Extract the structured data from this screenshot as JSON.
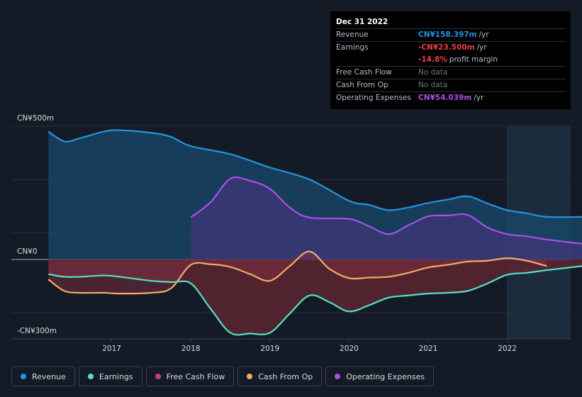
{
  "chart_data": {
    "type": "area",
    "y_axis_labels": {
      "top": "CN¥500m",
      "zero": "CN¥0",
      "bottom": "-CN¥300m"
    },
    "ylim": [
      -300,
      500
    ],
    "xlim": [
      2016.15,
      2023.0
    ],
    "x_ticks": [
      {
        "value": 2017,
        "label": "2017"
      },
      {
        "value": 2018,
        "label": "2018"
      },
      {
        "value": 2019,
        "label": "2019"
      },
      {
        "value": 2020,
        "label": "2020"
      },
      {
        "value": 2021,
        "label": "2021"
      },
      {
        "value": 2022,
        "label": "2022"
      }
    ],
    "highlight_start": 2022.0,
    "series": [
      {
        "name": "Revenue",
        "color": "#2394df",
        "fill": true,
        "x": [
          2016.2,
          2016.4,
          2016.6,
          2016.9,
          2017.1,
          2017.5,
          2017.75,
          2018.0,
          2018.5,
          2019.0,
          2019.5,
          2020.0,
          2020.25,
          2020.5,
          2020.75,
          2021.0,
          2021.25,
          2021.5,
          2021.75,
          2022.0,
          2022.25,
          2022.5,
          2023.0
        ],
        "values": [
          480,
          443,
          455,
          480,
          485,
          475,
          460,
          425,
          395,
          345,
          300,
          220,
          205,
          185,
          195,
          212,
          225,
          237,
          210,
          185,
          173,
          160,
          160
        ]
      },
      {
        "name": "Operating Expenses",
        "color": "#a951e6",
        "fill": true,
        "x": [
          2018.0,
          2018.25,
          2018.5,
          2018.75,
          2019.0,
          2019.25,
          2019.5,
          2020.0,
          2020.25,
          2020.5,
          2020.75,
          2021.0,
          2021.25,
          2021.5,
          2021.75,
          2022.0,
          2022.25,
          2022.5,
          2023.0
        ],
        "values": [
          158,
          215,
          303,
          295,
          265,
          195,
          157,
          152,
          125,
          95,
          128,
          162,
          165,
          167,
          120,
          95,
          87,
          75,
          57
        ]
      },
      {
        "name": "Earnings",
        "color": "#58e0c6",
        "fill": false,
        "x": [
          2016.2,
          2016.4,
          2016.6,
          2016.9,
          2017.1,
          2017.5,
          2017.75,
          2018.0,
          2018.25,
          2018.5,
          2018.75,
          2019.0,
          2019.25,
          2019.5,
          2019.75,
          2020.0,
          2020.25,
          2020.5,
          2020.75,
          2021.0,
          2021.25,
          2021.5,
          2021.75,
          2022.0,
          2022.25,
          2022.5,
          2023.0
        ],
        "values": [
          -55,
          -65,
          -65,
          -60,
          -65,
          -80,
          -85,
          -90,
          -185,
          -275,
          -278,
          -275,
          -203,
          -135,
          -160,
          -195,
          -172,
          -143,
          -135,
          -128,
          -125,
          -118,
          -90,
          -57,
          -50,
          -40,
          -23
        ]
      },
      {
        "name": "Cash From Op",
        "color": "#f2ab6b",
        "fill": false,
        "x": [
          2016.2,
          2016.4,
          2016.6,
          2016.9,
          2017.1,
          2017.5,
          2017.75,
          2018.0,
          2018.25,
          2018.5,
          2018.75,
          2019.0,
          2019.25,
          2019.5,
          2019.75,
          2020.0,
          2020.25,
          2020.5,
          2020.75,
          2021.0,
          2021.25,
          2021.5,
          2021.75,
          2022.0,
          2022.25,
          2022.5
        ],
        "values": [
          -75,
          -118,
          -125,
          -125,
          -128,
          -125,
          -108,
          -20,
          -18,
          -28,
          -55,
          -80,
          -25,
          30,
          -35,
          -70,
          -68,
          -65,
          -50,
          -30,
          -20,
          -8,
          -5,
          5,
          -5,
          -25
        ]
      }
    ],
    "fill_between": {
      "name": "Free Cash Flow",
      "color": "#b83a55"
    }
  },
  "tooltip": {
    "date": "Dec 31 2022",
    "rows": [
      {
        "label": "Revenue",
        "value": "CN¥158.397m",
        "unit": "/yr",
        "color": "#2394df"
      },
      {
        "label": "Earnings",
        "value": "-CN¥23.500m",
        "unit": "/yr",
        "color": "#e84141"
      },
      {
        "label": "",
        "value": "-14.8%",
        "unit": "profit margin",
        "color": "#e84141"
      },
      {
        "label": "Free Cash Flow",
        "value": "No data",
        "unit": "",
        "color": "#6d737b"
      },
      {
        "label": "Cash From Op",
        "value": "No data",
        "unit": "",
        "color": "#6d737b"
      },
      {
        "label": "Operating Expenses",
        "value": "CN¥54.039m",
        "unit": "/yr",
        "color": "#a951e6"
      }
    ]
  },
  "legend": [
    {
      "label": "Revenue",
      "color": "#2394df"
    },
    {
      "label": "Earnings",
      "color": "#58e0c6"
    },
    {
      "label": "Free Cash Flow",
      "color": "#c2457a"
    },
    {
      "label": "Cash From Op",
      "color": "#f2ab6b"
    },
    {
      "label": "Operating Expenses",
      "color": "#a951e6"
    }
  ]
}
